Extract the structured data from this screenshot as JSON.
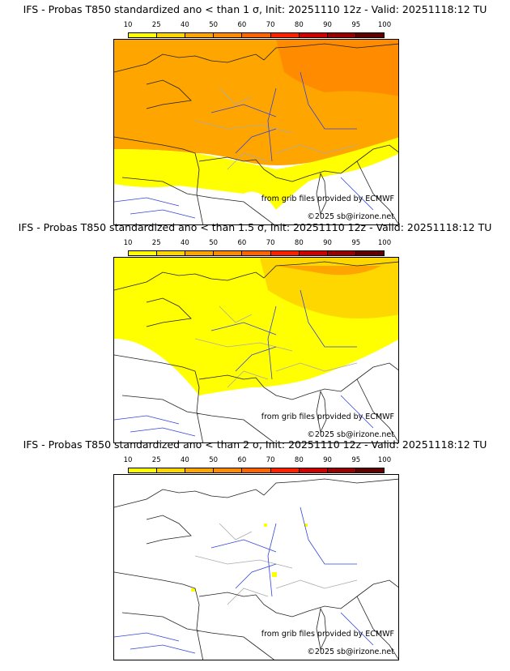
{
  "colorbar": {
    "labels": [
      "10",
      "25",
      "40",
      "50",
      "60",
      "70",
      "80",
      "90",
      "95",
      "100"
    ],
    "colors": [
      "#ffff00",
      "#ffd700",
      "#ffa500",
      "#ff8c00",
      "#ff6400",
      "#ff2000",
      "#d00000",
      "#990000",
      "#600000"
    ]
  },
  "panels": [
    {
      "title": "IFS - Probas T850  standardized ano < than 1 σ, Init: 20251110 12z - Valid: 20251118:12 TU",
      "level": "1"
    },
    {
      "title": "IFS - Probas T850  standardized ano < than 1.5 σ, Init: 20251110 12z - Valid: 20251118:12 TU",
      "level": "1.5"
    },
    {
      "title": "IFS - Probas T850  standardized ano < than 2 σ, Init: 20251110 12z - Valid: 20251118:12 TU",
      "level": "2"
    }
  ],
  "credits": {
    "source": "from grib files provided by ECMWF",
    "copyright": "©2025 sb@irizone.net"
  }
}
